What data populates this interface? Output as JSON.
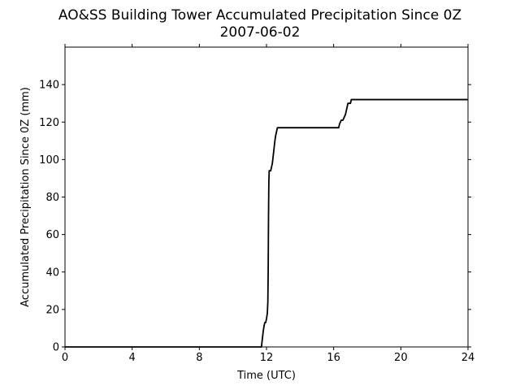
{
  "chart_data": {
    "type": "line",
    "title": "AO&SS Building Tower Accumulated Precipitation Since 0Z",
    "subtitle": "2007-06-02",
    "xlabel": "Time (UTC)",
    "ylabel": "Accumulated Precipitation Since 0Z (mm)",
    "xlim": [
      0,
      24
    ],
    "ylim": [
      0,
      160
    ],
    "xticks": [
      0,
      4,
      8,
      12,
      16,
      20,
      24
    ],
    "yticks": [
      0,
      20,
      40,
      60,
      80,
      100,
      120,
      140
    ],
    "grid": false,
    "line_color": "#000000",
    "series": [
      {
        "x": [
          0,
          11.7,
          11.75,
          11.8,
          11.85,
          11.9,
          11.95,
          12.0,
          12.05,
          12.08,
          12.1,
          12.12,
          12.14,
          12.16,
          12.18,
          12.25,
          12.3,
          12.35,
          12.4,
          12.45,
          12.5,
          12.55,
          12.6,
          12.65,
          12.7,
          16.3,
          16.35,
          16.45,
          16.55,
          16.6,
          16.7,
          16.75,
          16.8,
          16.85,
          16.95,
          17.0,
          17.05,
          17.1,
          24
        ],
        "y": [
          0,
          0,
          4,
          8,
          11,
          13,
          13,
          15,
          18,
          24,
          40,
          70,
          88,
          94,
          94,
          94,
          96,
          98,
          102,
          106,
          110,
          113,
          115,
          117,
          117,
          117,
          119,
          121,
          121,
          122,
          124,
          126,
          128,
          130,
          130,
          130,
          132,
          132,
          132
        ]
      }
    ]
  }
}
